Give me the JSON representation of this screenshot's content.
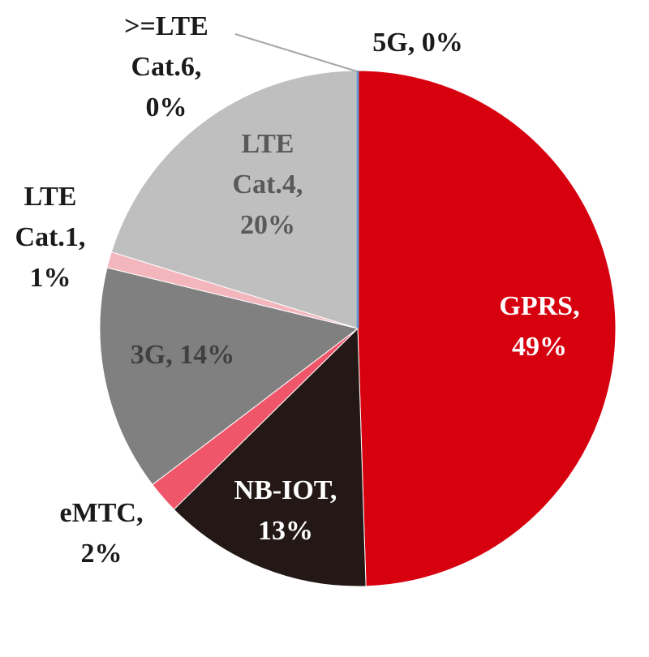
{
  "chart_data": {
    "type": "pie",
    "values": [
      49,
      13,
      2,
      14,
      1,
      20,
      0,
      0
    ],
    "value_labels": [
      [
        "GPRS,",
        "49%"
      ],
      [
        "NB-IOT,",
        "13%"
      ],
      [
        "eMTC,",
        "2%"
      ],
      [
        "3G, 14%"
      ],
      [
        "LTE",
        "Cat.1,",
        "1%"
      ],
      [
        "LTE",
        "Cat.4,",
        "20%"
      ],
      [
        ">=LTE",
        "Cat.6,",
        "0%"
      ],
      [
        "5G, 0%"
      ]
    ],
    "colors": [
      "#d7000f",
      "#231815",
      "#f0566a",
      "#808080",
      "#f4b6bd",
      "#bfbfbf",
      "#a6a6a6",
      "#5b9bd5"
    ]
  }
}
